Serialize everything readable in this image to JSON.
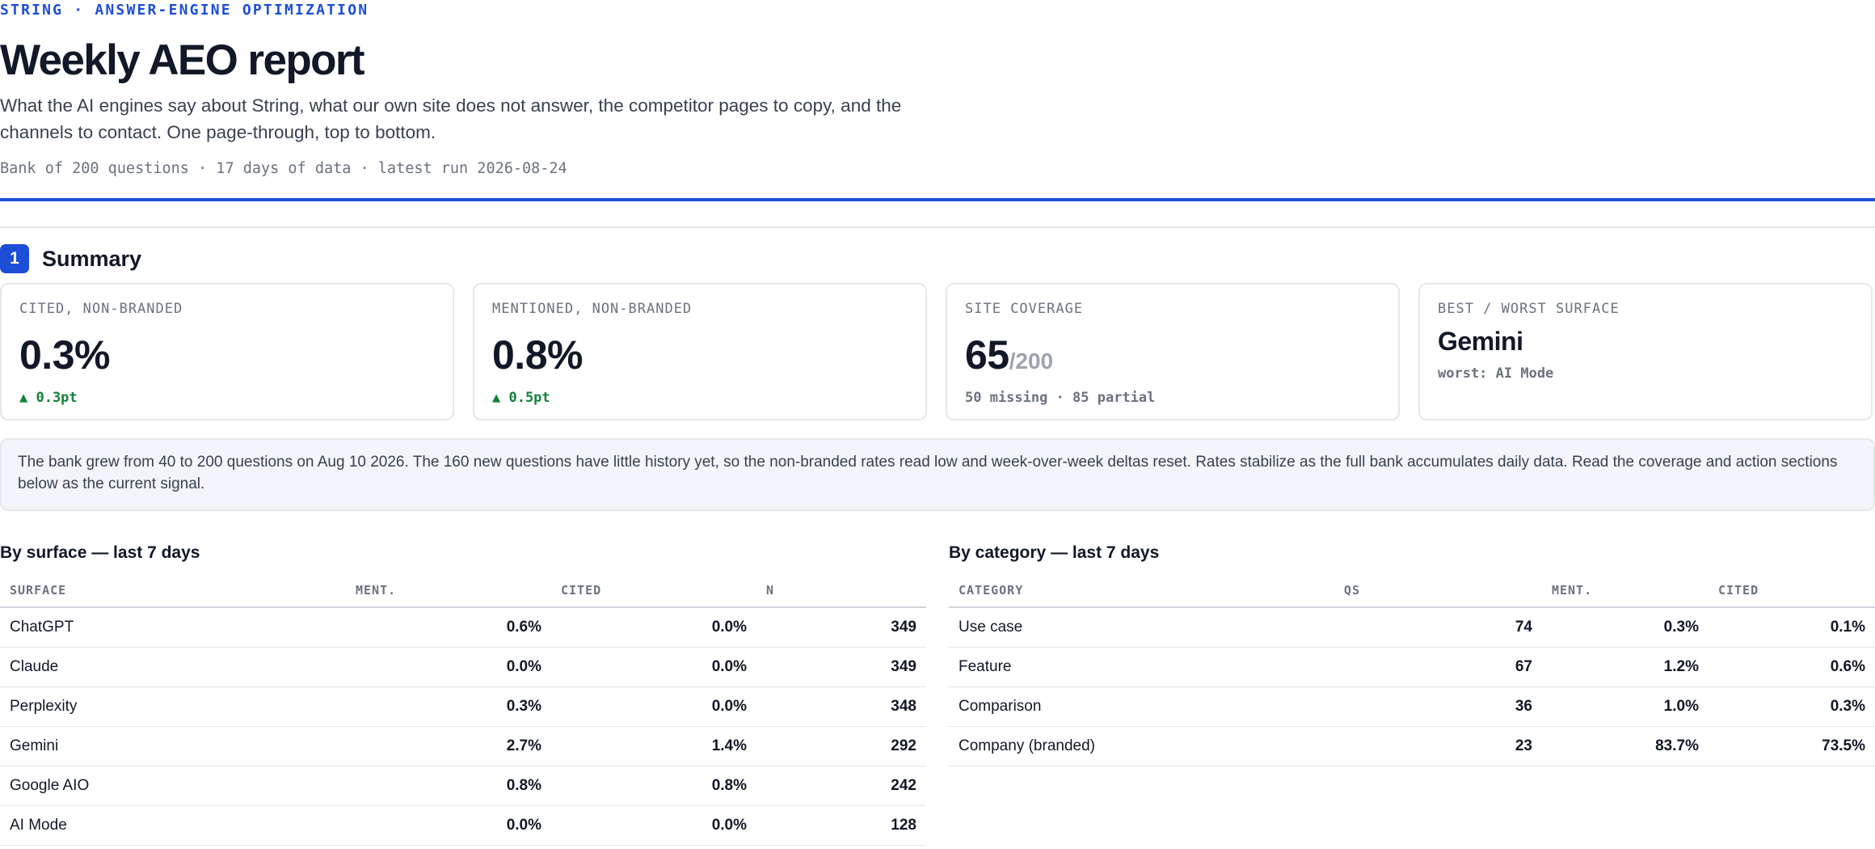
{
  "header": {
    "eyebrow": "STRING · ANSWER-ENGINE OPTIMIZATION",
    "title": "Weekly AEO report",
    "intro": "What the AI engines say about String, what our own site does not answer, the competitor pages to copy, and the channels to contact. One page-through, top to bottom.",
    "meta": "Bank of 200 questions · 17 days of data · latest run 2026-08-24"
  },
  "summary": {
    "number": "1",
    "title": "Summary",
    "cards": [
      {
        "label": "CITED, NON-BRANDED",
        "value": "0.3%",
        "delta": "▲ 0.3pt"
      },
      {
        "label": "MENTIONED, NON-BRANDED",
        "value": "0.8%",
        "delta": "▲ 0.5pt"
      },
      {
        "label": "SITE COVERAGE",
        "value": "65",
        "suffix": "/200",
        "sub": "50 missing · 85 partial"
      },
      {
        "label": "BEST / WORST SURFACE",
        "value": "Gemini",
        "sub": "worst: AI Mode"
      }
    ],
    "note": "The bank grew from 40 to 200 questions on Aug 10 2026. The 160 new questions have little history yet, so the non-branded rates read low and week-over-week deltas reset. Rates stabilize as the full bank accumulates daily data. Read the coverage and action sections below as the current signal."
  },
  "by_surface": {
    "title": "By surface — last 7 days",
    "headers": [
      "SURFACE",
      "MENT.",
      "CITED",
      "N"
    ],
    "rows": [
      [
        "ChatGPT",
        "0.6%",
        "0.0%",
        "349"
      ],
      [
        "Claude",
        "0.0%",
        "0.0%",
        "349"
      ],
      [
        "Perplexity",
        "0.3%",
        "0.0%",
        "348"
      ],
      [
        "Gemini",
        "2.7%",
        "1.4%",
        "292"
      ],
      [
        "Google AIO",
        "0.8%",
        "0.8%",
        "242"
      ],
      [
        "AI Mode",
        "0.0%",
        "0.0%",
        "128"
      ]
    ]
  },
  "by_category": {
    "title": "By category — last 7 days",
    "headers": [
      "CATEGORY",
      "QS",
      "MENT.",
      "CITED"
    ],
    "rows": [
      [
        "Use case",
        "74",
        "0.3%",
        "0.1%"
      ],
      [
        "Feature",
        "67",
        "1.2%",
        "0.6%"
      ],
      [
        "Comparison",
        "36",
        "1.0%",
        "0.3%"
      ],
      [
        "Company (branded)",
        "23",
        "83.7%",
        "73.5%"
      ]
    ]
  }
}
